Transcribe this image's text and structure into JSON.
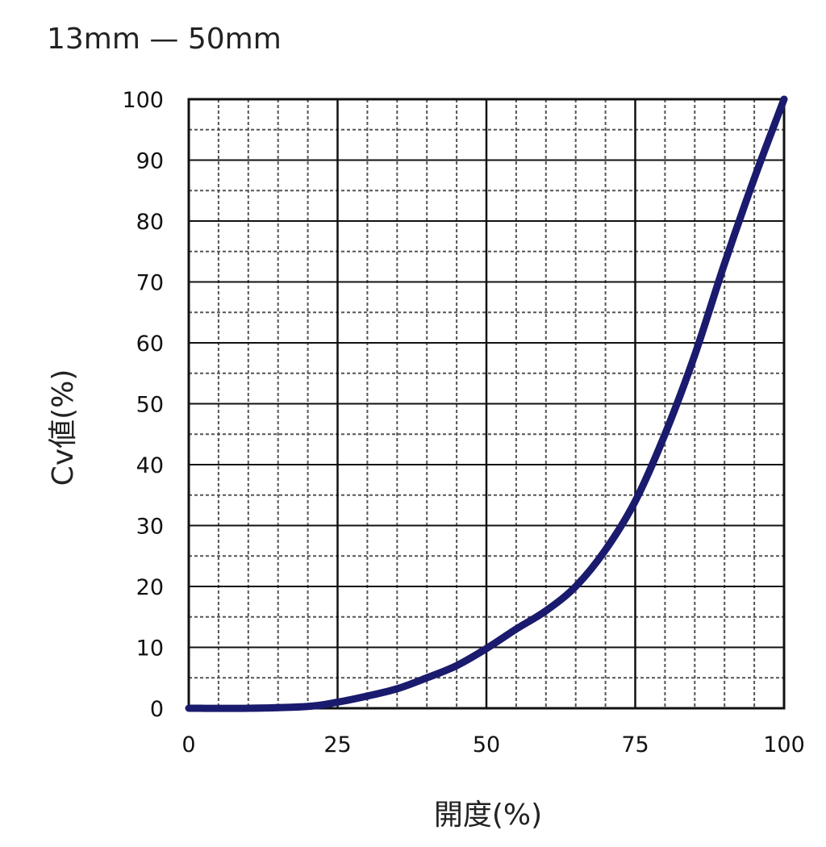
{
  "chart_data": {
    "type": "line",
    "title": "13mm — 50mm",
    "xlabel": "開度(%)",
    "ylabel": "Cv値(%)",
    "xlim": [
      0,
      100
    ],
    "ylim": [
      0,
      100
    ],
    "x_ticks": [
      "0",
      "25",
      "50",
      "75",
      "100"
    ],
    "y_ticks": [
      "0",
      "10",
      "20",
      "30",
      "40",
      "50",
      "60",
      "70",
      "80",
      "90",
      "100"
    ],
    "grid": true,
    "series": [
      {
        "color": "#1a1a6e",
        "x": [
          0,
          10,
          20,
          25,
          30,
          35,
          40,
          45,
          50,
          55,
          60,
          65,
          70,
          75,
          80,
          85,
          90,
          95,
          100
        ],
        "y": [
          0,
          0,
          0.3,
          1,
          2,
          3.2,
          5,
          7,
          9.8,
          13,
          16,
          20,
          26,
          34,
          45,
          58,
          73,
          87,
          100
        ]
      }
    ]
  }
}
